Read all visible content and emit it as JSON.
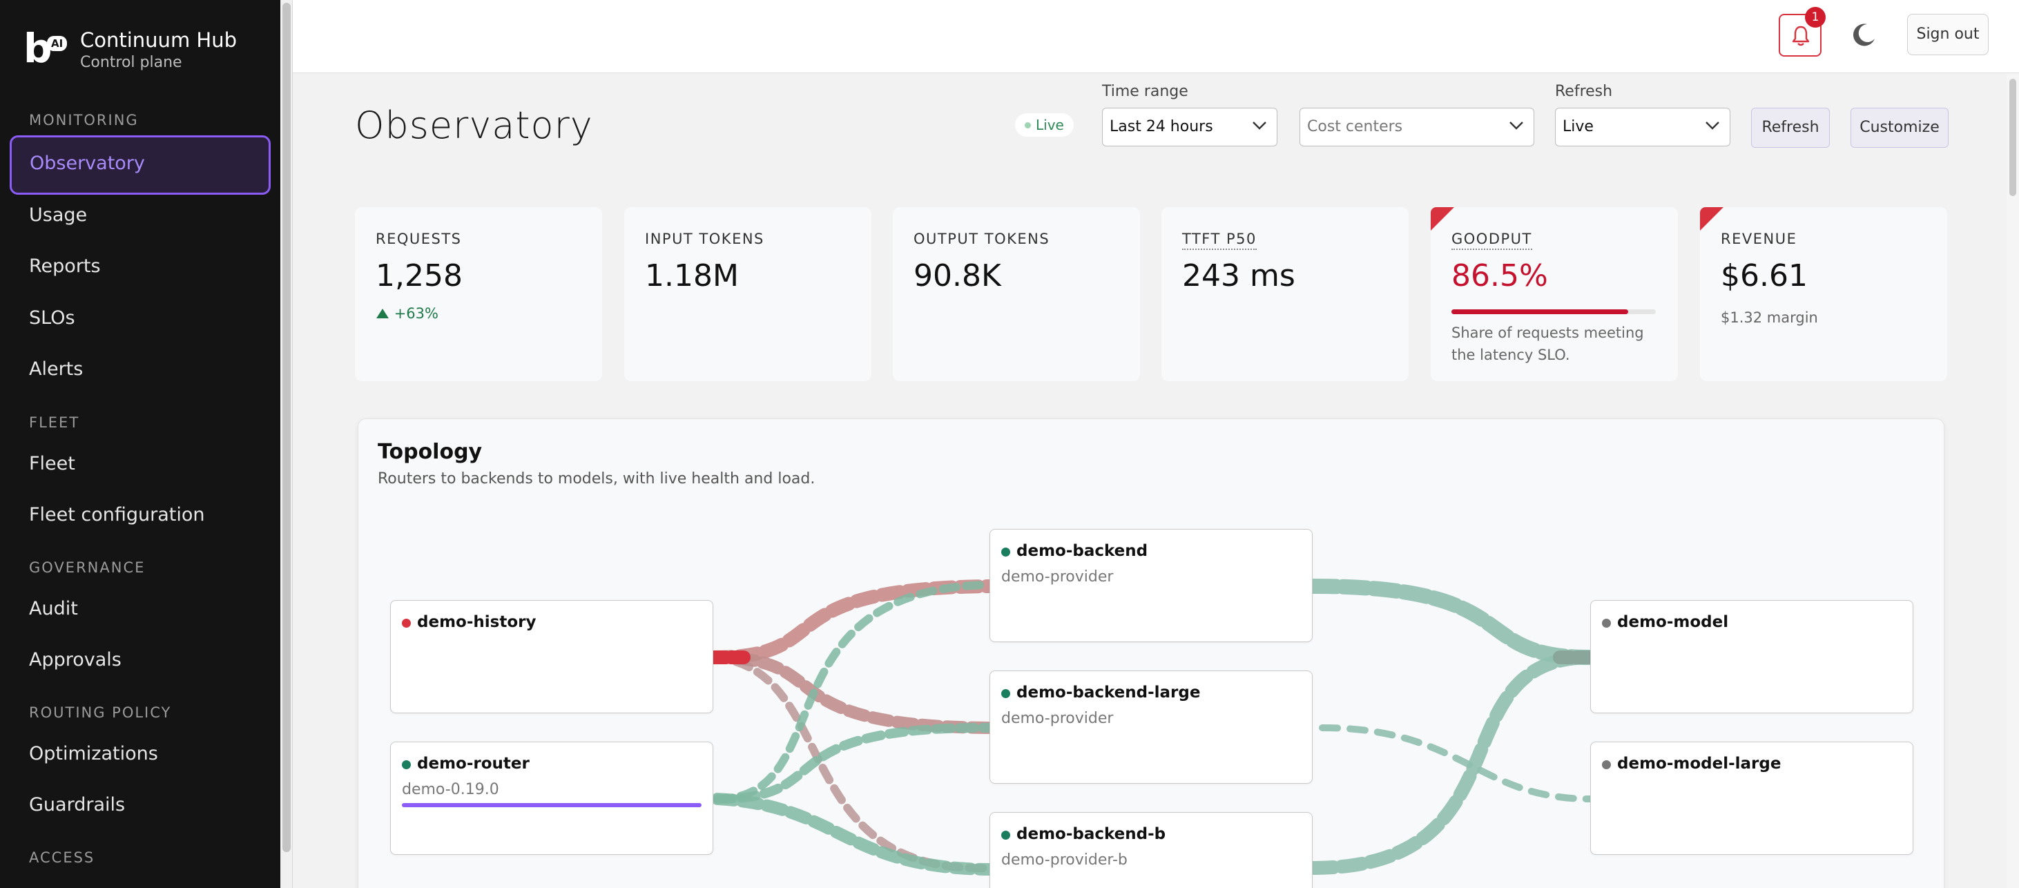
{
  "app": {
    "title": "Continuum Hub",
    "subtitle": "Control plane",
    "logo_letter": "b",
    "logo_badge": "AI"
  },
  "sidebar": {
    "sections": [
      {
        "label": "MONITORING",
        "items": [
          "Observatory",
          "Usage",
          "Reports",
          "SLOs",
          "Alerts"
        ]
      },
      {
        "label": "FLEET",
        "items": [
          "Fleet",
          "Fleet configuration"
        ]
      },
      {
        "label": "GOVERNANCE",
        "items": [
          "Audit",
          "Approvals"
        ]
      },
      {
        "label": "ROUTING POLICY",
        "items": [
          "Optimizations",
          "Guardrails"
        ]
      },
      {
        "label": "ACCESS",
        "items": []
      }
    ],
    "active_item": "Observatory"
  },
  "topbar": {
    "notification_count": "1",
    "notification_icon": "bell-icon",
    "theme_icon": "moon-icon",
    "signout_label": "Sign out"
  },
  "header": {
    "title": "Observatory",
    "live_label": "Live",
    "time_range_label": "Time range",
    "time_range_value": "Last 24 hours",
    "cost_centers_placeholder": "Cost centers",
    "refresh_label": "Refresh",
    "refresh_value": "Live",
    "refresh_button": "Refresh",
    "customize_button": "Customize"
  },
  "stats": {
    "requests": {
      "label": "REQUESTS",
      "value": "1,258",
      "delta": "+63%"
    },
    "input_tokens": {
      "label": "INPUT TOKENS",
      "value": "1.18M"
    },
    "output_tokens": {
      "label": "OUTPUT TOKENS",
      "value": "90.8K"
    },
    "ttft": {
      "label": "TTFT P50",
      "value": "243 ms"
    },
    "goodput": {
      "label": "GOODPUT",
      "value": "86.5%",
      "fraction": 0.865,
      "description": "Share of requests meeting the latency SLO."
    },
    "revenue": {
      "label": "REVENUE",
      "value": "$6.61",
      "sub": "$1.32 margin"
    }
  },
  "topology": {
    "title": "Topology",
    "subtitle": "Routers to backends to models, with live health and load.",
    "status_colors": {
      "healthy": "#1a7d5e",
      "error": "#d9323f",
      "unknown": "#777777"
    },
    "nodes": {
      "history": {
        "name": "demo-history",
        "detail": "",
        "status": "error"
      },
      "router": {
        "name": "demo-router",
        "detail": "demo-0.19.0",
        "status": "healthy",
        "load": 1.0
      },
      "backend": {
        "name": "demo-backend",
        "detail": "demo-provider",
        "status": "healthy"
      },
      "backend_large": {
        "name": "demo-backend-large",
        "detail": "demo-provider",
        "status": "healthy"
      },
      "backend_b": {
        "name": "demo-backend-b",
        "detail": "demo-provider-b",
        "status": "healthy"
      },
      "model": {
        "name": "demo-model",
        "detail": "",
        "status": "unknown"
      },
      "model_large": {
        "name": "demo-model-large",
        "detail": "",
        "status": "unknown"
      }
    }
  }
}
